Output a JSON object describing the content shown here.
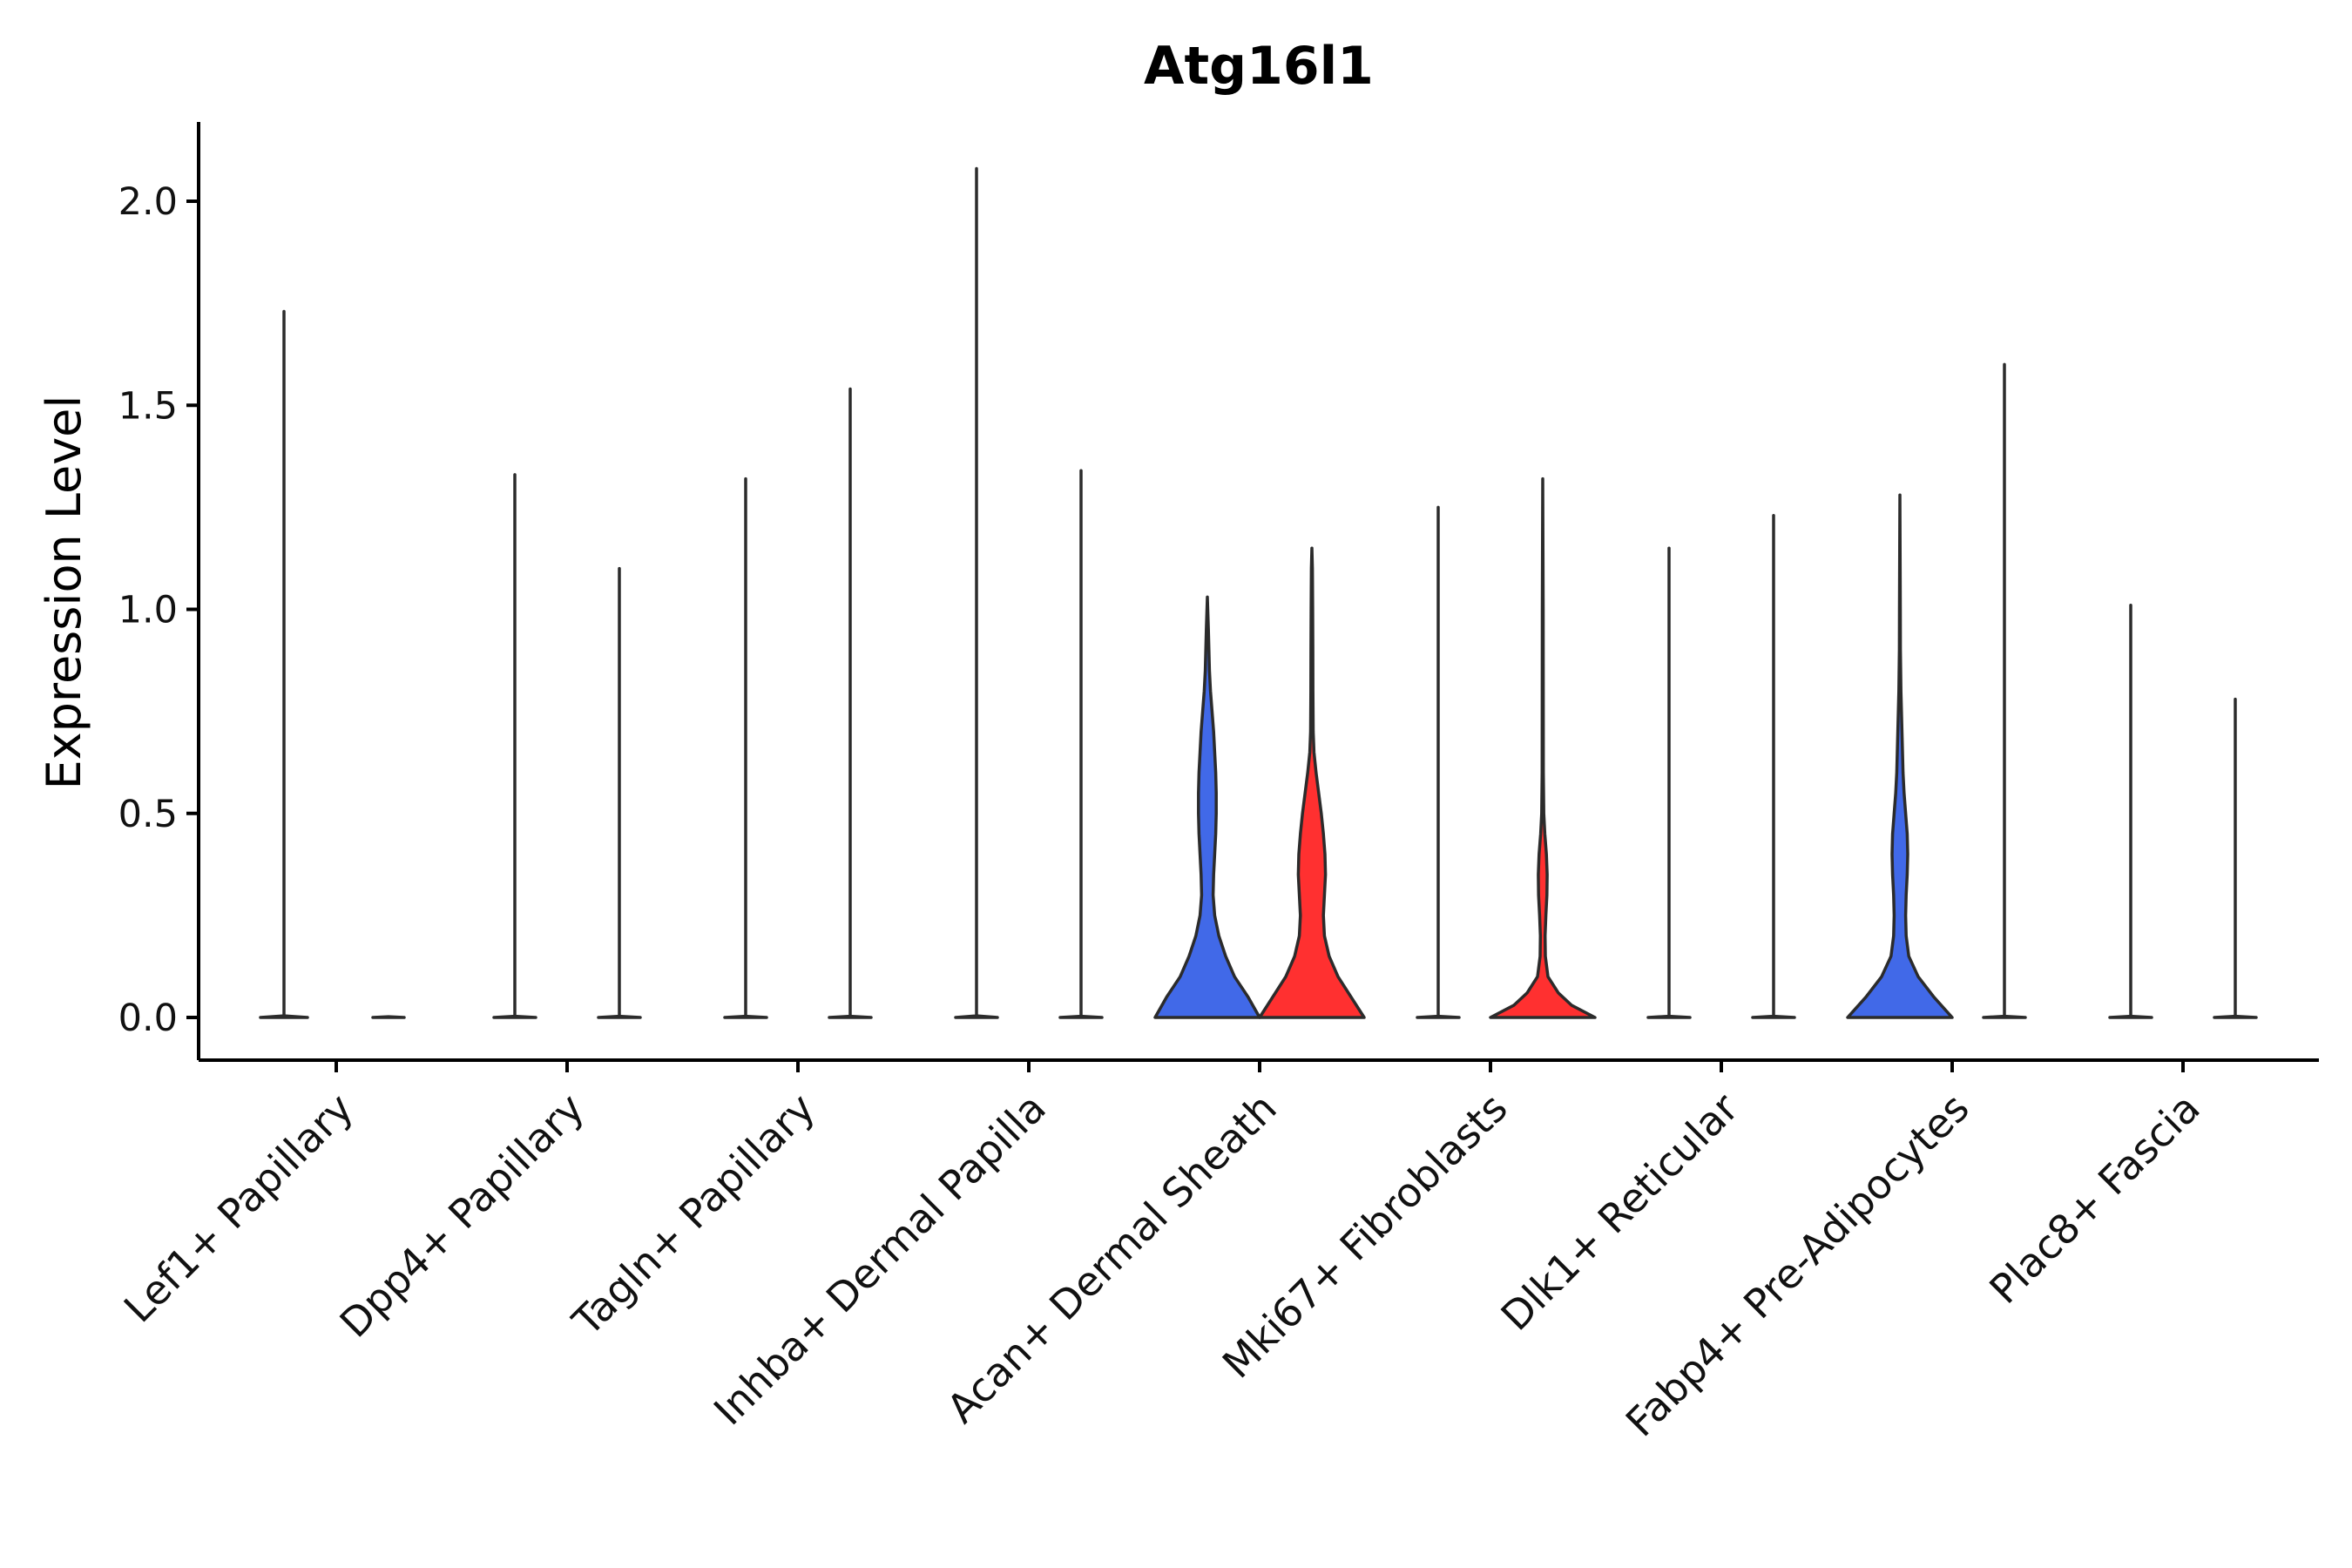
{
  "chart_data": {
    "type": "violin",
    "title": "Atg16l1",
    "xlabel": "",
    "ylabel": "Expression Level",
    "ylim": [
      -0.105,
      2.2
    ],
    "yticks": [
      0.0,
      0.5,
      1.0,
      1.5,
      2.0
    ],
    "ytick_labels": [
      "0.0",
      "0.5",
      "1.0",
      "1.5",
      "2.0"
    ],
    "categories": [
      "Lef1+ Papillary",
      "Dpp4+ Papillary",
      "Tagln+ Papillary",
      "Inhba+ Dermal Papilla",
      "Acan+ Dermal Sheath",
      "Mki67+ Fibroblasts",
      "Dlk1+ Reticular",
      "Fabp4+ Pre-Adipocytes",
      "Plac8+ Fascia"
    ],
    "colors": {
      "group_a": "#4169E8",
      "group_b": "#FF3030",
      "outline": "#2b2b2b",
      "flat": "#ffffff"
    },
    "violins": [
      {
        "category": "Lef1+ Papillary",
        "slot": "left",
        "max": 1.73,
        "fill": "flat",
        "profile": [
          [
            0,
            0.45
          ],
          [
            0.004,
            0.0
          ]
        ]
      },
      {
        "category": "Lef1+ Papillary",
        "slot": "right",
        "max": 0.0,
        "fill": "flat",
        "profile": [
          [
            0,
            0.3
          ],
          [
            0.002,
            0.0
          ]
        ]
      },
      {
        "category": "Dpp4+ Papillary",
        "slot": "left",
        "max": 1.33,
        "fill": "flat",
        "profile": [
          [
            0,
            0.4
          ],
          [
            0.003,
            0.0
          ]
        ]
      },
      {
        "category": "Dpp4+ Papillary",
        "slot": "right",
        "max": 1.1,
        "fill": "flat",
        "profile": [
          [
            0,
            0.4
          ],
          [
            0.003,
            0.0
          ]
        ]
      },
      {
        "category": "Tagln+ Papillary",
        "slot": "left",
        "max": 1.32,
        "fill": "flat",
        "profile": [
          [
            0,
            0.4
          ],
          [
            0.003,
            0.0
          ]
        ]
      },
      {
        "category": "Tagln+ Papillary",
        "slot": "right",
        "max": 1.54,
        "fill": "flat",
        "profile": [
          [
            0,
            0.4
          ],
          [
            0.003,
            0.0
          ]
        ]
      },
      {
        "category": "Inhba+ Dermal Papilla",
        "slot": "left",
        "max": 2.08,
        "fill": "flat",
        "profile": [
          [
            0,
            0.4
          ],
          [
            0.004,
            0.0
          ]
        ]
      },
      {
        "category": "Inhba+ Dermal Papilla",
        "slot": "right",
        "max": 1.34,
        "fill": "flat",
        "profile": [
          [
            0,
            0.4
          ],
          [
            0.003,
            0.0
          ]
        ]
      },
      {
        "category": "Acan+ Dermal Sheath",
        "slot": "left",
        "max": 1.03,
        "fill": "group_a",
        "profile": [
          [
            0,
            1.0
          ],
          [
            0.05,
            0.78
          ],
          [
            0.1,
            0.52
          ],
          [
            0.15,
            0.35
          ],
          [
            0.2,
            0.22
          ],
          [
            0.25,
            0.14
          ],
          [
            0.3,
            0.11
          ],
          [
            0.35,
            0.12
          ],
          [
            0.4,
            0.14
          ],
          [
            0.45,
            0.16
          ],
          [
            0.5,
            0.17
          ],
          [
            0.55,
            0.17
          ],
          [
            0.6,
            0.16
          ],
          [
            0.65,
            0.14
          ],
          [
            0.7,
            0.12
          ],
          [
            0.75,
            0.09
          ],
          [
            0.8,
            0.06
          ],
          [
            0.85,
            0.04
          ],
          [
            0.9,
            0.03
          ],
          [
            0.95,
            0.02
          ],
          [
            1.03,
            0.0
          ]
        ]
      },
      {
        "category": "Acan+ Dermal Sheath",
        "slot": "right",
        "max": 1.15,
        "fill": "group_b",
        "profile": [
          [
            0,
            1.0
          ],
          [
            0.05,
            0.75
          ],
          [
            0.1,
            0.5
          ],
          [
            0.15,
            0.33
          ],
          [
            0.2,
            0.24
          ],
          [
            0.25,
            0.22
          ],
          [
            0.3,
            0.24
          ],
          [
            0.35,
            0.26
          ],
          [
            0.4,
            0.25
          ],
          [
            0.45,
            0.22
          ],
          [
            0.5,
            0.18
          ],
          [
            0.55,
            0.13
          ],
          [
            0.6,
            0.08
          ],
          [
            0.65,
            0.04
          ],
          [
            0.7,
            0.025
          ],
          [
            0.8,
            0.02
          ],
          [
            0.9,
            0.018
          ],
          [
            1.0,
            0.015
          ],
          [
            1.1,
            0.01
          ],
          [
            1.15,
            0.0
          ]
        ]
      },
      {
        "category": "Mki67+ Fibroblasts",
        "slot": "left",
        "max": 1.25,
        "fill": "flat",
        "profile": [
          [
            0,
            0.4
          ],
          [
            0.003,
            0.0
          ]
        ]
      },
      {
        "category": "Mki67+ Fibroblasts",
        "slot": "right",
        "max": 1.32,
        "fill": "group_b",
        "profile": [
          [
            0,
            1.0
          ],
          [
            0.03,
            0.55
          ],
          [
            0.06,
            0.3
          ],
          [
            0.1,
            0.1
          ],
          [
            0.15,
            0.05
          ],
          [
            0.2,
            0.045
          ],
          [
            0.25,
            0.06
          ],
          [
            0.3,
            0.08
          ],
          [
            0.35,
            0.085
          ],
          [
            0.4,
            0.07
          ],
          [
            0.45,
            0.04
          ],
          [
            0.5,
            0.02
          ],
          [
            0.6,
            0.012
          ],
          [
            0.8,
            0.01
          ],
          [
            1.0,
            0.008
          ],
          [
            1.32,
            0.0
          ]
        ]
      },
      {
        "category": "Dlk1+ Reticular",
        "slot": "left",
        "max": 1.15,
        "fill": "flat",
        "profile": [
          [
            0,
            0.4
          ],
          [
            0.003,
            0.0
          ]
        ]
      },
      {
        "category": "Dlk1+ Reticular",
        "slot": "right",
        "max": 1.23,
        "fill": "flat",
        "profile": [
          [
            0,
            0.4
          ],
          [
            0.003,
            0.0
          ]
        ]
      },
      {
        "category": "Fabp4+ Pre-Adipocytes",
        "slot": "left",
        "max": 1.28,
        "fill": "group_a",
        "profile": [
          [
            0,
            1.0
          ],
          [
            0.05,
            0.65
          ],
          [
            0.1,
            0.35
          ],
          [
            0.15,
            0.17
          ],
          [
            0.2,
            0.12
          ],
          [
            0.25,
            0.11
          ],
          [
            0.3,
            0.12
          ],
          [
            0.35,
            0.14
          ],
          [
            0.4,
            0.15
          ],
          [
            0.45,
            0.14
          ],
          [
            0.5,
            0.11
          ],
          [
            0.55,
            0.08
          ],
          [
            0.6,
            0.06
          ],
          [
            0.7,
            0.04
          ],
          [
            0.8,
            0.02
          ],
          [
            0.9,
            0.01
          ],
          [
            1.0,
            0.008
          ],
          [
            1.28,
            0.0
          ]
        ]
      },
      {
        "category": "Fabp4+ Pre-Adipocytes",
        "slot": "right",
        "max": 1.6,
        "fill": "flat",
        "profile": [
          [
            0,
            0.4
          ],
          [
            0.003,
            0.0
          ]
        ]
      },
      {
        "category": "Plac8+ Fascia",
        "slot": "left",
        "max": 1.01,
        "fill": "flat",
        "profile": [
          [
            0,
            0.4
          ],
          [
            0.003,
            0.0
          ]
        ]
      },
      {
        "category": "Plac8+ Fascia",
        "slot": "right",
        "max": 0.78,
        "fill": "flat",
        "profile": [
          [
            0,
            0.4
          ],
          [
            0.003,
            0.0
          ]
        ]
      }
    ]
  }
}
